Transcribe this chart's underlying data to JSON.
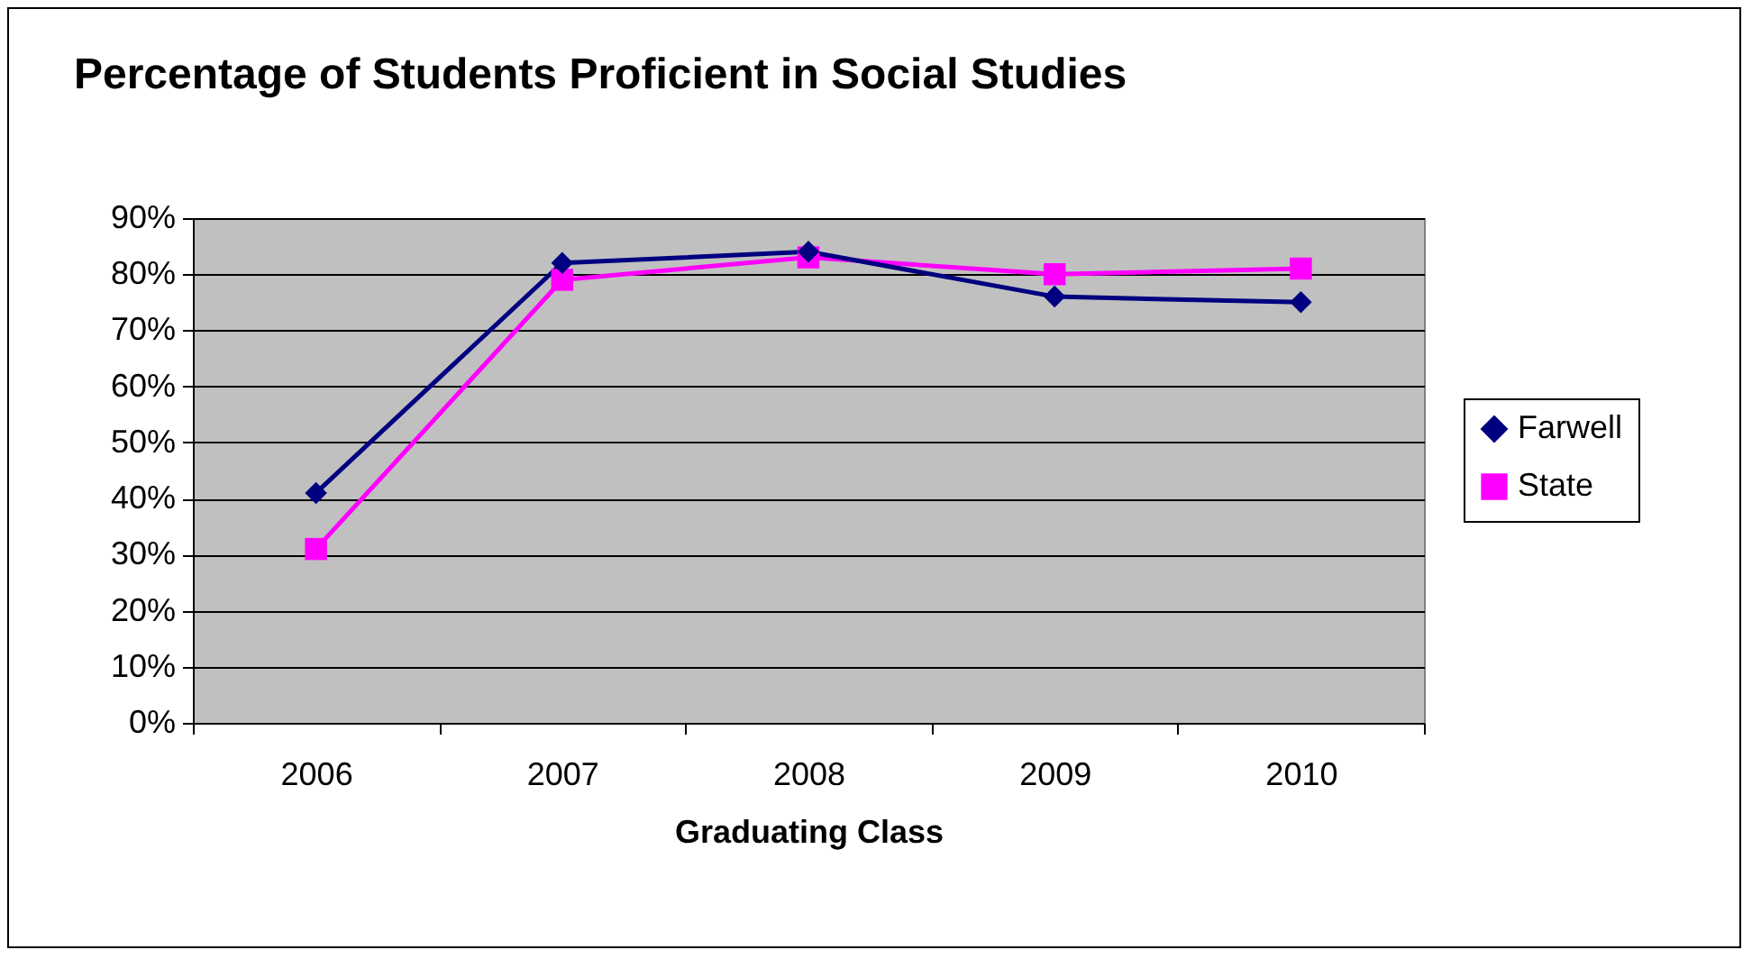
{
  "chart_data": {
    "type": "line",
    "title": "Percentage of Students Proficient in Social Studies",
    "xlabel": "Graduating Class",
    "categories": [
      "2006",
      "2007",
      "2008",
      "2009",
      "2010"
    ],
    "series": [
      {
        "name": "Farwell",
        "color": "#000080",
        "marker": "diamond",
        "values": [
          41,
          82,
          84,
          76,
          75
        ]
      },
      {
        "name": "State",
        "color": "#ff00ff",
        "marker": "square",
        "values": [
          31,
          79,
          83,
          80,
          81
        ]
      }
    ],
    "ylim": [
      0,
      90
    ],
    "yticks": [
      {
        "value": 0,
        "label": "0%"
      },
      {
        "value": 10,
        "label": "10%"
      },
      {
        "value": 20,
        "label": "20%"
      },
      {
        "value": 30,
        "label": "30%"
      },
      {
        "value": 40,
        "label": "40%"
      },
      {
        "value": 50,
        "label": "50%"
      },
      {
        "value": 60,
        "label": "60%"
      },
      {
        "value": 70,
        "label": "70%"
      },
      {
        "value": 80,
        "label": "80%"
      },
      {
        "value": 90,
        "label": "90%"
      }
    ],
    "grid": "y",
    "legend": "right"
  }
}
